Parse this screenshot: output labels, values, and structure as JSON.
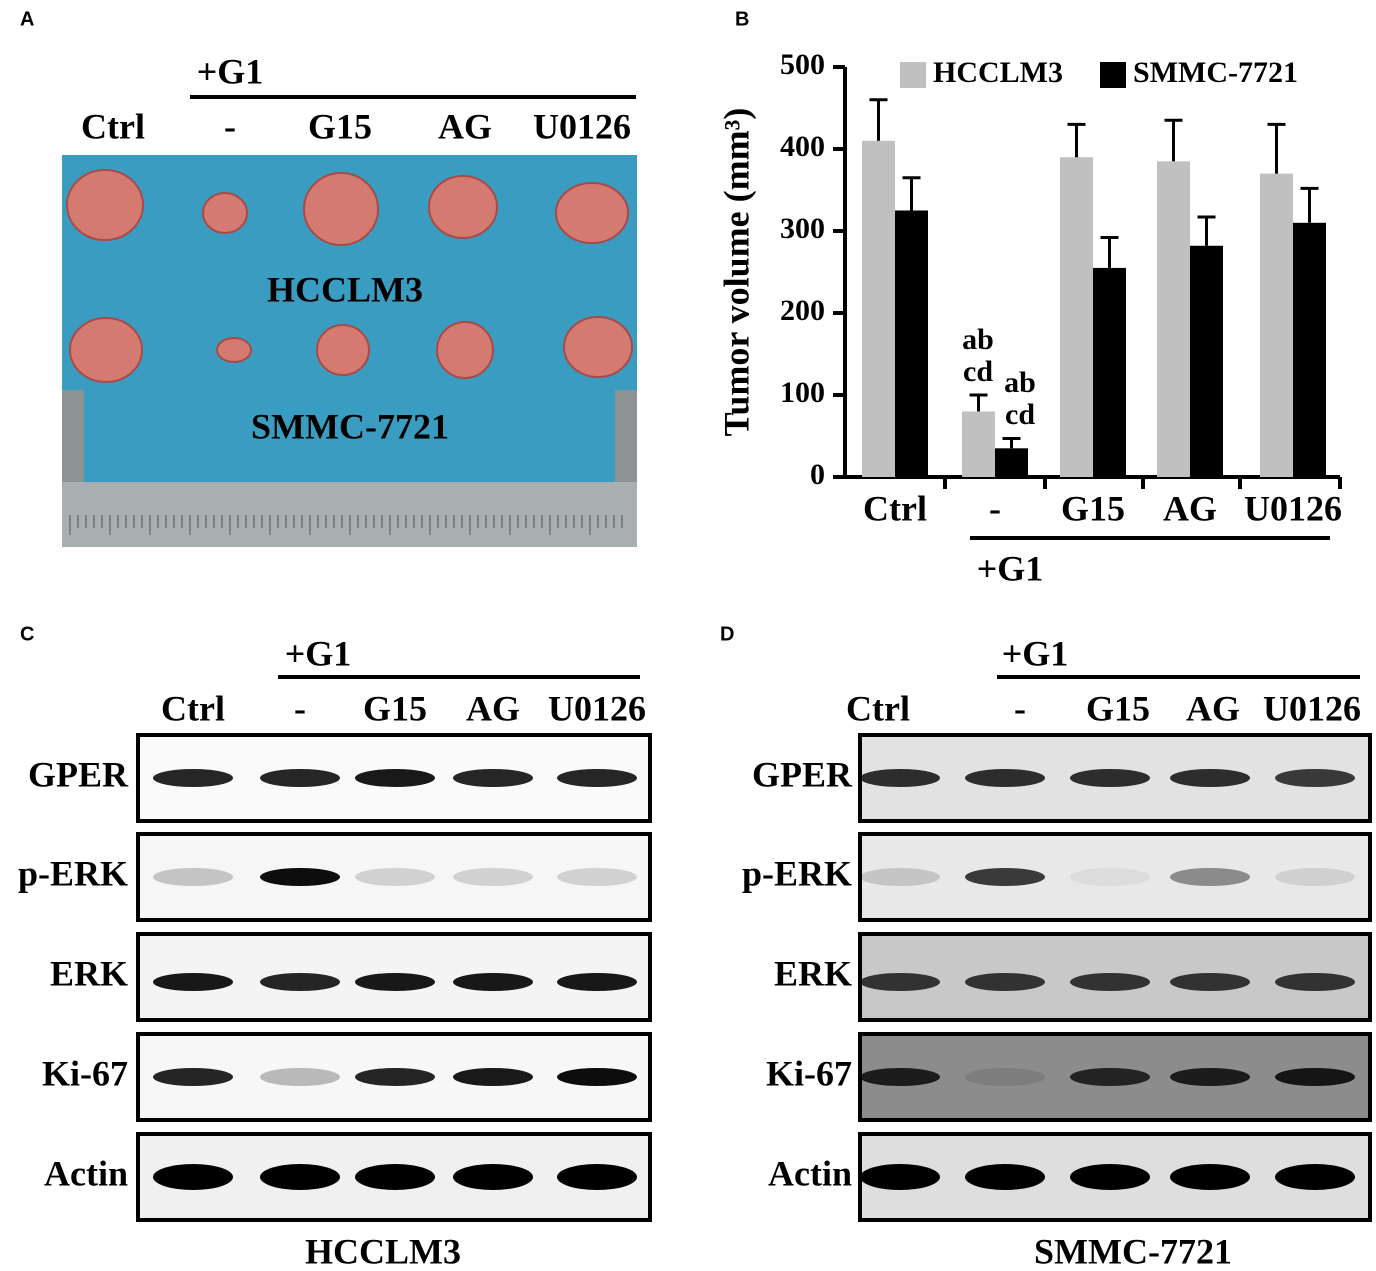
{
  "panels": {
    "a": {
      "letter": "A",
      "group_label": "+G1",
      "lanes": [
        "Ctrl",
        "-",
        "G15",
        "AG",
        "U0126"
      ],
      "rows": [
        "HCCLM3",
        "SMMC-7721"
      ]
    },
    "c": {
      "letter": "C",
      "group_label": "+G1",
      "lanes": [
        "Ctrl",
        "-",
        "G15",
        "AG",
        "U0126"
      ],
      "proteins": [
        "GPER",
        "p-ERK",
        "ERK",
        "Ki-67",
        "Actin"
      ],
      "cell_line": "HCCLM3"
    },
    "d": {
      "letter": "D",
      "group_label": "+G1",
      "lanes": [
        "Ctrl",
        "-",
        "G15",
        "AG",
        "U0126"
      ],
      "proteins": [
        "GPER",
        "p-ERK",
        "ERK",
        "Ki-67",
        "Actin"
      ],
      "cell_line": "SMMC-7721"
    }
  },
  "chart_data": {
    "type": "bar",
    "letter": "B",
    "y_label": "Tumor volume (mm³)",
    "group_label": "+G1",
    "categories": [
      "Ctrl",
      "-",
      "G15",
      "AG",
      "U0126"
    ],
    "series": [
      {
        "name": "HCCLM3",
        "color": "#c0c0c0",
        "values": [
          410,
          80,
          390,
          385,
          370
        ],
        "errors": [
          50,
          20,
          40,
          50,
          60
        ]
      },
      {
        "name": "SMMC-7721",
        "color": "#000000",
        "values": [
          325,
          35,
          255,
          282,
          310
        ],
        "errors": [
          40,
          12,
          37,
          35,
          42
        ]
      }
    ],
    "annotations": [
      [
        "ab",
        "cd"
      ],
      [
        "ab",
        "cd"
      ]
    ],
    "ylim": [
      0,
      500
    ],
    "yticks": [
      0,
      100,
      200,
      300,
      400,
      500
    ]
  }
}
